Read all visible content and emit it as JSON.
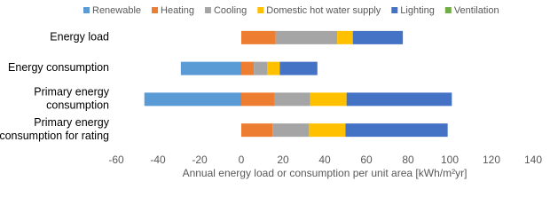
{
  "chart_data": {
    "type": "stacked-barh",
    "categories": [
      "Energy load",
      "Energy consumption",
      "Primary energy\nconsumption",
      "Primary energy\nconsumption for rating"
    ],
    "series": [
      {
        "name": "Renewable",
        "color": "#5b9bd5",
        "values": [
          0,
          -29,
          -46.5,
          0
        ]
      },
      {
        "name": "Heating",
        "color": "#ed7d31",
        "values": [
          16.5,
          6,
          16,
          15
        ]
      },
      {
        "name": "Cooling",
        "color": "#a5a5a5",
        "values": [
          29.5,
          6.5,
          17,
          17.5
        ]
      },
      {
        "name": "Domestic hot water supply",
        "color": "#ffc000",
        "values": [
          7.5,
          6,
          17.5,
          17.5
        ]
      },
      {
        "name": "Lighting",
        "color": "#4472c4",
        "values": [
          24,
          18,
          50.5,
          49
        ]
      },
      {
        "name": "Ventilation",
        "color": "#70ad47",
        "values": [
          0,
          0,
          0,
          0
        ]
      }
    ],
    "xlim": [
      -60,
      140
    ],
    "xticks": [
      -60,
      -40,
      -20,
      0,
      20,
      40,
      60,
      80,
      100,
      120,
      140
    ],
    "xlabel": "Annual energy load or consumption per unit area [kWh/m²yr]",
    "legend": "top"
  }
}
